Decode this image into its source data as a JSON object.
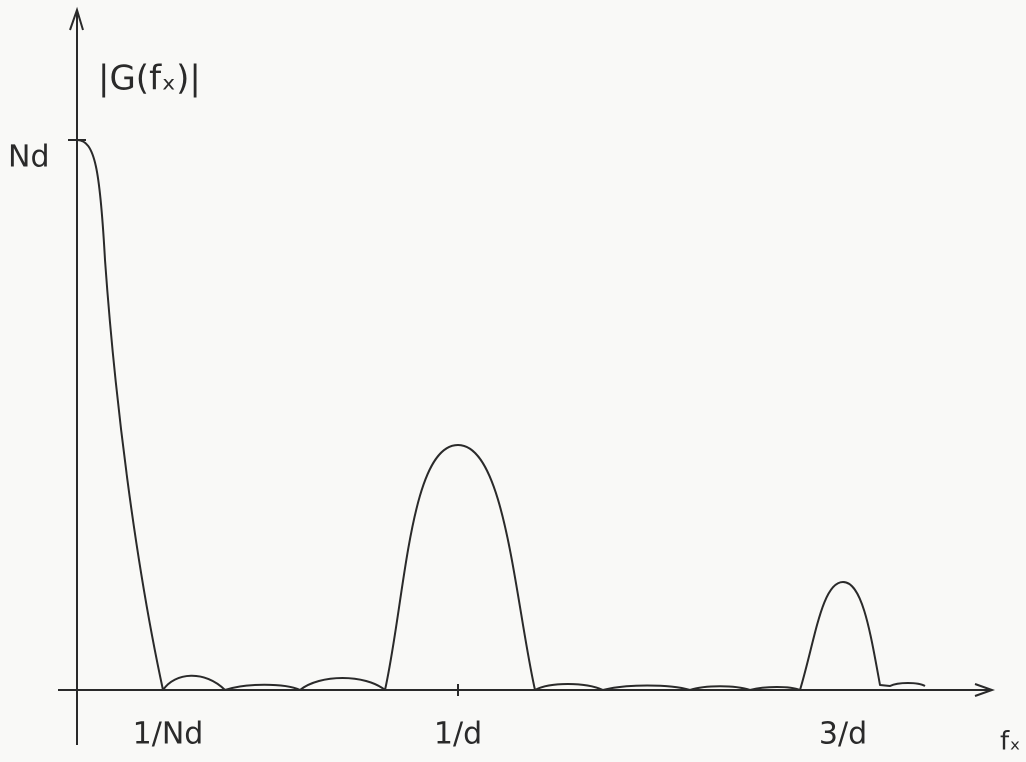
{
  "axis": {
    "y_label": "|G(fₓ)|",
    "x_label": "fₓ",
    "y_marker": "Nd"
  },
  "x_markers": [
    "1/Nd",
    "1/d",
    "3/d"
  ]
}
